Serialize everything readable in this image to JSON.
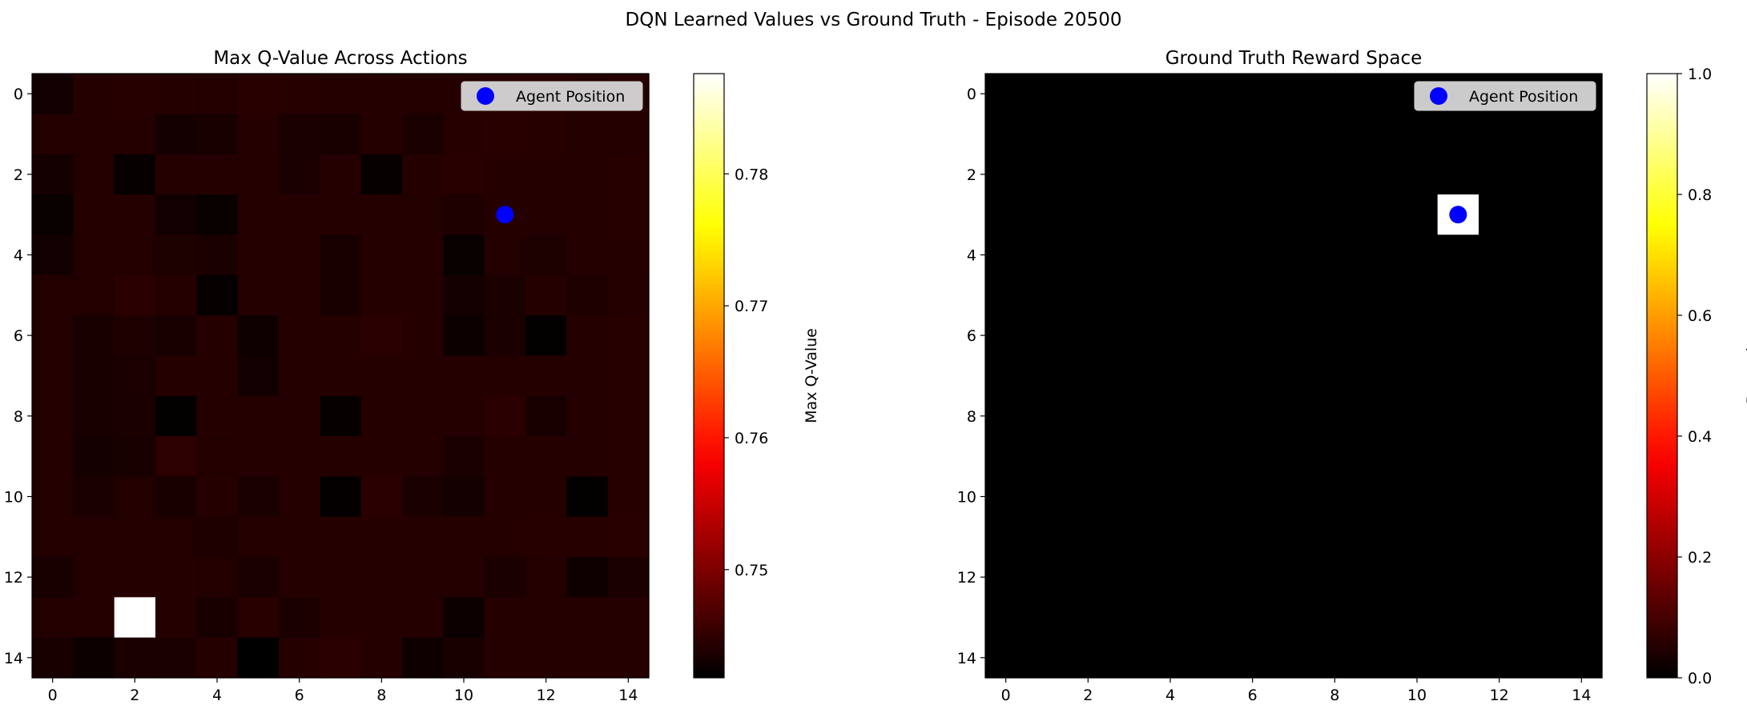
{
  "suptitle": "DQN Learned Values vs Ground Truth - Episode 20500",
  "chart_data": [
    {
      "type": "heatmap",
      "title": "Max Q-Value Across Actions",
      "colormap": "hot",
      "x_ticks": [
        0,
        2,
        4,
        6,
        8,
        10,
        12,
        14
      ],
      "y_ticks": [
        0,
        2,
        4,
        6,
        8,
        10,
        12,
        14
      ],
      "xlim": [
        -0.5,
        14.5
      ],
      "ylim": [
        14.5,
        -0.5
      ],
      "colorbar": {
        "label": "Max Q-Value",
        "vmin": 0.7418,
        "vmax": 0.7876,
        "ticks": [
          0.75,
          0.76,
          0.77,
          0.78
        ]
      },
      "grid_values": [
        [
          0.743,
          0.7442,
          0.7443,
          0.7442,
          0.7441,
          0.7444,
          0.7443,
          0.7441,
          0.7442,
          0.744,
          0.7442,
          0.7443,
          0.7444,
          0.7442,
          0.7443
        ],
        [
          0.744,
          0.7442,
          0.7442,
          0.7432,
          0.7434,
          0.7442,
          0.7436,
          0.7434,
          0.7442,
          0.7436,
          0.7443,
          0.7444,
          0.7443,
          0.744,
          0.7441
        ],
        [
          0.7432,
          0.7441,
          0.7422,
          0.7442,
          0.7442,
          0.7442,
          0.7435,
          0.7442,
          0.7422,
          0.7442,
          0.7444,
          0.7442,
          0.7442,
          0.744,
          0.7443
        ],
        [
          0.7424,
          0.7442,
          0.7442,
          0.743,
          0.7424,
          0.7442,
          0.7442,
          0.7442,
          0.7442,
          0.744,
          0.7438,
          0.7442,
          0.7442,
          0.7442,
          0.7443
        ],
        [
          0.743,
          0.744,
          0.7441,
          0.7437,
          0.7436,
          0.7442,
          0.7442,
          0.7434,
          0.7442,
          0.7442,
          0.7424,
          0.7441,
          0.7437,
          0.7442,
          0.7442
        ],
        [
          0.744,
          0.744,
          0.7446,
          0.7442,
          0.7422,
          0.7442,
          0.7442,
          0.7434,
          0.7442,
          0.7442,
          0.7432,
          0.7436,
          0.7442,
          0.7438,
          0.744
        ],
        [
          0.744,
          0.7434,
          0.7438,
          0.7434,
          0.7442,
          0.7428,
          0.7442,
          0.7442,
          0.7446,
          0.7442,
          0.7426,
          0.7436,
          0.742,
          0.7442,
          0.7443
        ],
        [
          0.744,
          0.7434,
          0.7435,
          0.7442,
          0.7442,
          0.743,
          0.7442,
          0.7442,
          0.7442,
          0.7442,
          0.7442,
          0.7442,
          0.7442,
          0.7442,
          0.7443
        ],
        [
          0.744,
          0.7434,
          0.7436,
          0.742,
          0.7442,
          0.7442,
          0.7442,
          0.7422,
          0.7442,
          0.7442,
          0.7442,
          0.7446,
          0.7434,
          0.7442,
          0.7443
        ],
        [
          0.744,
          0.7432,
          0.7434,
          0.7447,
          0.744,
          0.7442,
          0.7442,
          0.7442,
          0.7442,
          0.7442,
          0.7436,
          0.7442,
          0.7442,
          0.7442,
          0.7443
        ],
        [
          0.744,
          0.7436,
          0.744,
          0.7434,
          0.7442,
          0.7436,
          0.7442,
          0.742,
          0.7446,
          0.7436,
          0.7432,
          0.7442,
          0.7442,
          0.742,
          0.7443
        ],
        [
          0.744,
          0.744,
          0.744,
          0.744,
          0.7438,
          0.7442,
          0.7442,
          0.7442,
          0.7442,
          0.7442,
          0.7442,
          0.7442,
          0.7443,
          0.7443,
          0.7444
        ],
        [
          0.7434,
          0.744,
          0.7442,
          0.7442,
          0.744,
          0.7436,
          0.7442,
          0.7442,
          0.7442,
          0.7442,
          0.7442,
          0.7436,
          0.744,
          0.7428,
          0.7436
        ],
        [
          0.744,
          0.7442,
          0.7876,
          0.7442,
          0.7434,
          0.7444,
          0.7436,
          0.7442,
          0.7442,
          0.7442,
          0.7426,
          0.7442,
          0.7442,
          0.7442,
          0.7442
        ],
        [
          0.7434,
          0.7426,
          0.7436,
          0.7436,
          0.7442,
          0.7418,
          0.7442,
          0.7446,
          0.7442,
          0.7428,
          0.7434,
          0.7442,
          0.7442,
          0.7442,
          0.7442
        ]
      ],
      "agent_position": {
        "x": 11,
        "y": 3
      },
      "legend": {
        "label": "Agent Position",
        "location": "upper right",
        "marker_color": "#0000ff"
      }
    },
    {
      "type": "heatmap",
      "title": "Ground Truth Reward Space",
      "colormap": "hot",
      "x_ticks": [
        0,
        2,
        4,
        6,
        8,
        10,
        12,
        14
      ],
      "y_ticks": [
        0,
        2,
        4,
        6,
        8,
        10,
        12,
        14
      ],
      "xlim": [
        -0.5,
        14.5
      ],
      "ylim": [
        14.5,
        -0.5
      ],
      "colorbar": {
        "label": "Reward",
        "vmin": 0.0,
        "vmax": 1.0,
        "ticks": [
          0.0,
          0.2,
          0.4,
          0.6,
          0.8,
          1.0
        ]
      },
      "base_value": 0.0,
      "reward_cells": [
        {
          "x": 11,
          "y": 3,
          "value": 1.0
        }
      ],
      "agent_position": {
        "x": 11,
        "y": 3
      },
      "legend": {
        "label": "Agent Position",
        "location": "upper right",
        "marker_color": "#0000ff"
      }
    }
  ]
}
